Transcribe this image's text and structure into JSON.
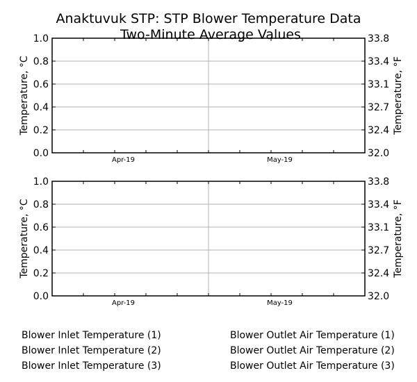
{
  "chart_data": {
    "type": "line",
    "title": "Anaktuvuk STP: STP Blower Temperature Data",
    "subtitle": "Two-Minute Average Values",
    "grid": true,
    "panels": [
      {
        "ylabel": "Temperature, °C",
        "ylabel_right": "Temperature, °F",
        "ylim": [
          0,
          1
        ],
        "yticks": [
          "0.0",
          "0.2",
          "0.4",
          "0.6",
          "0.8",
          "1.0"
        ],
        "yticks_right": [
          "32.0",
          "32.4",
          "32.7",
          "33.1",
          "33.4",
          "33.8"
        ],
        "xtick_labels": [
          "Apr-19",
          "May-19"
        ],
        "series": []
      },
      {
        "ylabel": "Temperature, °C",
        "ylabel_right": "Temperature, °F",
        "ylim": [
          0,
          1
        ],
        "yticks": [
          "0.0",
          "0.2",
          "0.4",
          "0.6",
          "0.8",
          "1.0"
        ],
        "yticks_right": [
          "32.0",
          "32.4",
          "32.7",
          "33.1",
          "33.4",
          "33.8"
        ],
        "xtick_labels": [
          "Apr-19",
          "May-19"
        ],
        "series": []
      }
    ],
    "legend": {
      "placement": "bottom",
      "left": [
        "Blower Inlet Temperature (1)",
        "Blower Inlet Temperature (2)",
        "Blower Inlet Temperature (3)"
      ],
      "right": [
        "Blower Outlet Air Temperature (1)",
        "Blower Outlet Air Temperature (2)",
        "Blower Outlet Air Temperature (3)"
      ]
    }
  }
}
